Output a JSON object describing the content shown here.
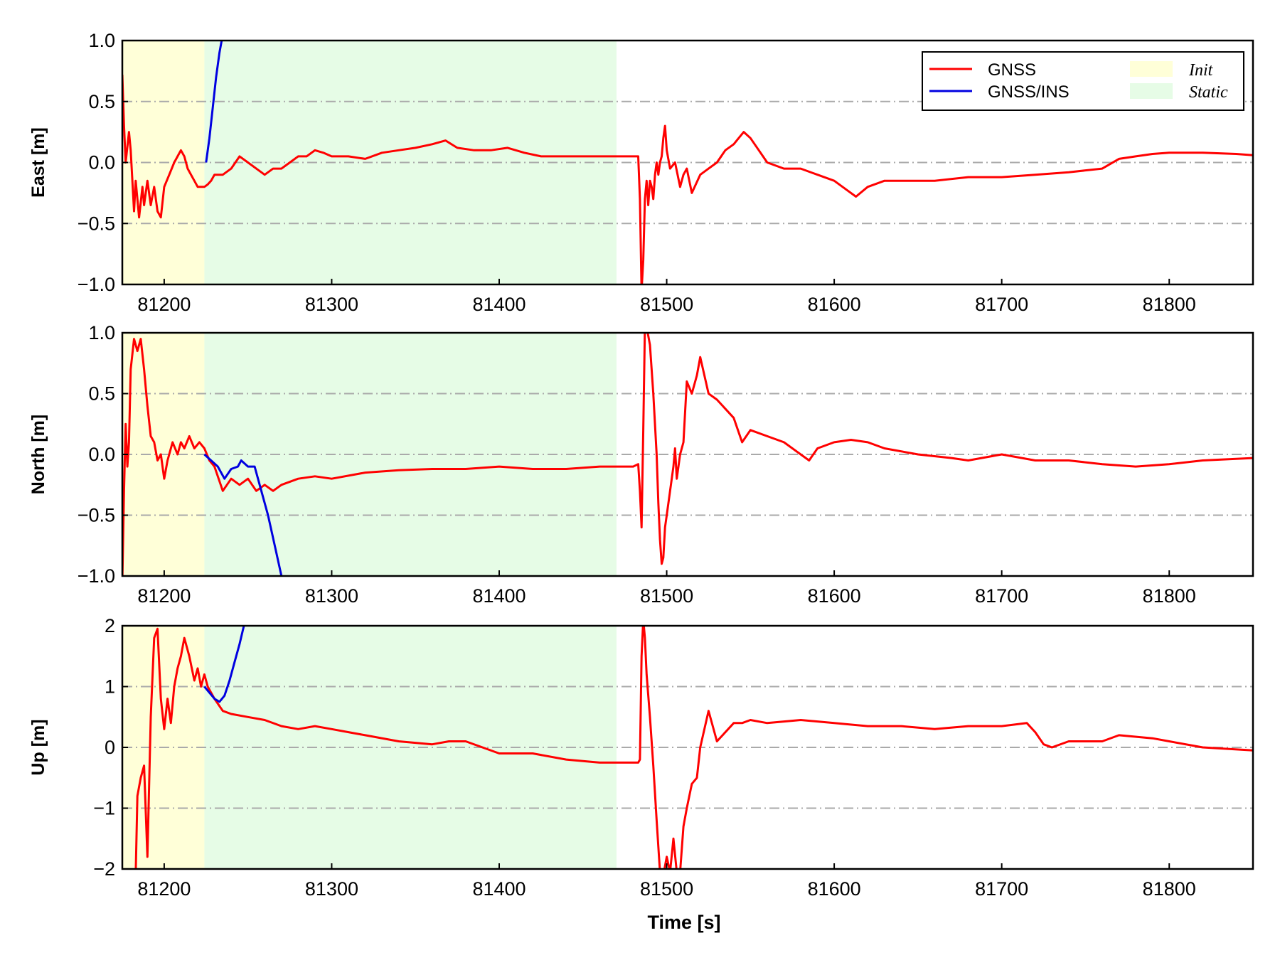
{
  "chart_data": {
    "type": "line",
    "shared_x": {
      "label": "Time [s]",
      "lim": [
        81175,
        81850
      ],
      "ticks": [
        81200,
        81300,
        81400,
        81500,
        81600,
        81700,
        81800
      ],
      "tick_labels": [
        "81200",
        "81300",
        "81400",
        "81500",
        "81600",
        "81700",
        "81800"
      ]
    },
    "legend": {
      "position": "top-right of first panel",
      "entries": [
        {
          "label": "GNSS",
          "kind": "line",
          "color": "#ff0000"
        },
        {
          "label": "GNSS/INS",
          "kind": "line",
          "color": "#0000e0"
        },
        {
          "label": "Init",
          "kind": "patch",
          "color": "#ffffd8"
        },
        {
          "label": "Static",
          "kind": "patch",
          "color": "#e6fce6"
        }
      ]
    },
    "shaded_regions": [
      {
        "label": "Init",
        "x": [
          81175,
          81224
        ],
        "color": "#ffffd8"
      },
      {
        "label": "Static",
        "x": [
          81224,
          81470
        ],
        "color": "#e6fce6"
      }
    ],
    "series_colors": {
      "GNSS": "#ff0000",
      "GNSS/INS": "#0000e0"
    },
    "grid": "horizontal dash-dot gray at each y tick",
    "panels": [
      {
        "ylabel": "East [m]",
        "ylim": [
          -1,
          1
        ],
        "yticks": [
          -1,
          -0.5,
          0,
          0.5,
          1
        ],
        "ytick_labels": [
          "−1.0",
          "−0.5",
          "0.0",
          "0.5",
          "1.0"
        ],
        "series": [
          {
            "name": "GNSS",
            "x": [
              81175,
              81176,
              81177,
              81179,
              81180,
              81182,
              81183,
              81185,
              81187,
              81188,
              81190,
              81192,
              81194,
              81196,
              81198,
              81200,
              81203,
              81206,
              81208,
              81210,
              81212,
              81214,
              81216,
              81218,
              81220,
              81222,
              81224,
              81226,
              81228,
              81230,
              81235,
              81240,
              81245,
              81250,
              81255,
              81260,
              81265,
              81270,
              81275,
              81280,
              81285,
              81290,
              81295,
              81300,
              81310,
              81320,
              81330,
              81340,
              81350,
              81360,
              81368,
              81375,
              81385,
              81395,
              81405,
              81415,
              81425,
              81435,
              81445,
              81455,
              81465,
              81475,
              81483,
              81484,
              81485,
              81486,
              81487,
              81488,
              81489,
              81490,
              81491,
              81492,
              81493,
              81494,
              81495,
              81496,
              81497,
              81498,
              81499,
              81500,
              81502,
              81505,
              81508,
              81510,
              81512,
              81515,
              81520,
              81525,
              81530,
              81535,
              81540,
              81543,
              81546,
              81550,
              81555,
              81560,
              81570,
              81580,
              81590,
              81600,
              81605,
              81610,
              81613,
              81620,
              81630,
              81640,
              81650,
              81660,
              81680,
              81700,
              81720,
              81740,
              81760,
              81770,
              81780,
              81790,
              81800,
              81820,
              81840,
              81850
            ],
            "y": [
              0.72,
              0.3,
              0.0,
              0.25,
              0.1,
              -0.4,
              -0.15,
              -0.45,
              -0.2,
              -0.35,
              -0.15,
              -0.35,
              -0.2,
              -0.4,
              -0.45,
              -0.2,
              -0.1,
              0.0,
              0.05,
              0.1,
              0.05,
              -0.05,
              -0.1,
              -0.15,
              -0.2,
              -0.2,
              -0.2,
              -0.18,
              -0.15,
              -0.1,
              -0.1,
              -0.05,
              0.05,
              0.0,
              -0.05,
              -0.1,
              -0.05,
              -0.05,
              0.0,
              0.05,
              0.05,
              0.1,
              0.08,
              0.05,
              0.05,
              0.03,
              0.08,
              0.1,
              0.12,
              0.15,
              0.18,
              0.12,
              0.1,
              0.1,
              0.12,
              0.08,
              0.05,
              0.05,
              0.05,
              0.05,
              0.05,
              0.05,
              0.05,
              -0.3,
              -1.05,
              -0.8,
              -0.3,
              -0.15,
              -0.35,
              -0.15,
              -0.2,
              -0.3,
              -0.1,
              0.0,
              -0.1,
              0.0,
              0.05,
              0.2,
              0.3,
              0.1,
              -0.05,
              0.0,
              -0.2,
              -0.1,
              -0.05,
              -0.25,
              -0.1,
              -0.05,
              0.0,
              0.1,
              0.15,
              0.2,
              0.25,
              0.2,
              0.1,
              0.0,
              -0.05,
              -0.05,
              -0.1,
              -0.15,
              -0.2,
              -0.25,
              -0.28,
              -0.2,
              -0.15,
              -0.15,
              -0.15,
              -0.15,
              -0.12,
              -0.12,
              -0.1,
              -0.08,
              -0.05,
              0.03,
              0.05,
              0.07,
              0.08,
              0.08,
              0.07,
              0.06
            ]
          },
          {
            "name": "GNSS/INS",
            "x": [
              81225,
              81227,
              81229,
              81231,
              81233,
              81235
            ],
            "y": [
              0.0,
              0.2,
              0.45,
              0.7,
              0.9,
              1.05
            ]
          }
        ]
      },
      {
        "ylabel": "North [m]",
        "ylim": [
          -1,
          1
        ],
        "yticks": [
          -1,
          -0.5,
          0,
          0.5,
          1
        ],
        "ytick_labels": [
          "−1.0",
          "−0.5",
          "0.0",
          "0.5",
          "1.0"
        ],
        "series": [
          {
            "name": "GNSS",
            "x": [
              81175,
              81176,
              81177,
              81178,
              81179,
              81180,
              81182,
              81184,
              81186,
              81188,
              81190,
              81192,
              81194,
              81196,
              81198,
              81200,
              81202,
              81205,
              81208,
              81210,
              81212,
              81215,
              81218,
              81221,
              81224,
              81227,
              81230,
              81235,
              81240,
              81245,
              81250,
              81255,
              81260,
              81265,
              81270,
              81280,
              81290,
              81300,
              81320,
              81340,
              81360,
              81380,
              81400,
              81420,
              81440,
              81460,
              81470,
              81480,
              81483,
              81484,
              81485,
              81486,
              81487,
              81488,
              81490,
              81492,
              81494,
              81495,
              81496,
              81497,
              81498,
              81499,
              81500,
              81502,
              81504,
              81505,
              81506,
              81508,
              81510,
              81512,
              81515,
              81518,
              81520,
              81525,
              81530,
              81540,
              81545,
              81550,
              81560,
              81570,
              81580,
              81585,
              81590,
              81600,
              81610,
              81620,
              81630,
              81650,
              81670,
              81680,
              81700,
              81720,
              81740,
              81760,
              81780,
              81800,
              81820,
              81850
            ],
            "y": [
              -1.05,
              -0.3,
              0.25,
              -0.1,
              0.1,
              0.7,
              0.95,
              0.85,
              0.95,
              0.7,
              0.4,
              0.15,
              0.1,
              -0.05,
              0.0,
              -0.2,
              -0.05,
              0.1,
              0.0,
              0.1,
              0.05,
              0.15,
              0.05,
              0.1,
              0.05,
              -0.05,
              -0.1,
              -0.3,
              -0.2,
              -0.25,
              -0.2,
              -0.3,
              -0.25,
              -0.3,
              -0.25,
              -0.2,
              -0.18,
              -0.2,
              -0.15,
              -0.13,
              -0.12,
              -0.12,
              -0.1,
              -0.12,
              -0.12,
              -0.1,
              -0.1,
              -0.1,
              -0.08,
              -0.3,
              -0.6,
              0.2,
              1.05,
              1.05,
              0.9,
              0.5,
              0.0,
              -0.4,
              -0.7,
              -0.9,
              -0.85,
              -0.6,
              -0.5,
              -0.3,
              -0.1,
              0.05,
              -0.2,
              0.0,
              0.1,
              0.6,
              0.5,
              0.65,
              0.8,
              0.5,
              0.45,
              0.3,
              0.1,
              0.2,
              0.15,
              0.1,
              0.0,
              -0.05,
              0.05,
              0.1,
              0.12,
              0.1,
              0.05,
              0.0,
              -0.03,
              -0.05,
              0.0,
              -0.05,
              -0.05,
              -0.08,
              -0.1,
              -0.08,
              -0.05,
              -0.03
            ]
          },
          {
            "name": "GNSS/INS",
            "x": [
              81224,
              81228,
              81232,
              81236,
              81240,
              81244,
              81246,
              81250,
              81254,
              81258,
              81262,
              81266,
              81270
            ],
            "y": [
              0.0,
              -0.05,
              -0.1,
              -0.2,
              -0.12,
              -0.1,
              -0.05,
              -0.1,
              -0.1,
              -0.3,
              -0.5,
              -0.75,
              -1.0
            ]
          }
        ]
      },
      {
        "ylabel": "Up [m]",
        "ylim": [
          -2,
          2
        ],
        "yticks": [
          -2,
          -1,
          0,
          1,
          2
        ],
        "ytick_labels": [
          "−2",
          "−1",
          "0",
          "1",
          "2"
        ],
        "series": [
          {
            "name": "GNSS",
            "x": [
              81183,
              81184,
              81186,
              81188,
              81190,
              81192,
              81194,
              81196,
              81198,
              81200,
              81202,
              81204,
              81206,
              81208,
              81210,
              81212,
              81215,
              81218,
              81220,
              81222,
              81224,
              81226,
              81228,
              81230,
              81235,
              81240,
              81250,
              81260,
              81270,
              81280,
              81290,
              81300,
              81310,
              81320,
              81340,
              81360,
              81370,
              81380,
              81400,
              81420,
              81440,
              81460,
              81470,
              81480,
              81483,
              81484,
              81485,
              81486,
              81487,
              81488,
              81490,
              81492,
              81494,
              81496,
              81498,
              81500,
              81502,
              81504,
              81506,
              81508,
              81510,
              81512,
              81515,
              81518,
              81520,
              81525,
              81530,
              81540,
              81545,
              81550,
              81560,
              81580,
              81600,
              81620,
              81640,
              81660,
              81680,
              81700,
              81715,
              81720,
              81725,
              81730,
              81740,
              81760,
              81770,
              81790,
              81800,
              81820,
              81850
            ],
            "y": [
              -2.1,
              -0.8,
              -0.5,
              -0.3,
              -1.8,
              0.5,
              1.8,
              1.95,
              0.8,
              0.3,
              0.8,
              0.4,
              1.0,
              1.3,
              1.5,
              1.8,
              1.5,
              1.1,
              1.3,
              1.0,
              1.2,
              1.0,
              0.9,
              0.8,
              0.6,
              0.55,
              0.5,
              0.45,
              0.35,
              0.3,
              0.35,
              0.3,
              0.25,
              0.2,
              0.1,
              0.05,
              0.1,
              0.1,
              -0.1,
              -0.1,
              -0.2,
              -0.25,
              -0.25,
              -0.25,
              -0.25,
              -0.2,
              1.5,
              2.1,
              1.8,
              1.2,
              0.5,
              -0.3,
              -1.2,
              -2.05,
              -2.1,
              -1.8,
              -2.05,
              -1.5,
              -2.05,
              -2.05,
              -1.3,
              -1.0,
              -0.6,
              -0.5,
              0.0,
              0.6,
              0.1,
              0.4,
              0.4,
              0.45,
              0.4,
              0.45,
              0.4,
              0.35,
              0.35,
              0.3,
              0.35,
              0.35,
              0.4,
              0.25,
              0.05,
              0.0,
              0.1,
              0.1,
              0.2,
              0.15,
              0.1,
              0.0,
              -0.05
            ]
          },
          {
            "name": "GNSS/INS",
            "x": [
              81224,
              81227,
              81230,
              81233,
              81236,
              81239,
              81242,
              81245,
              81248
            ],
            "y": [
              1.0,
              0.9,
              0.8,
              0.75,
              0.85,
              1.1,
              1.4,
              1.7,
              2.05
            ]
          }
        ]
      }
    ]
  }
}
